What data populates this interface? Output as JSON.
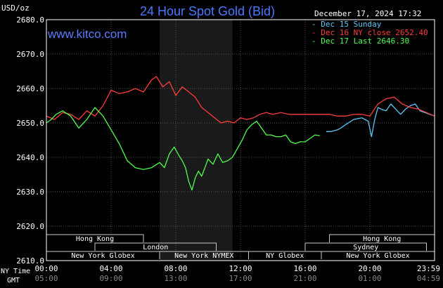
{
  "header": {
    "title": "24 Hour Spot Gold (Bid)",
    "unit": "USD/oz",
    "website": "www.kitco.com",
    "datetime": "December 17, 2024 17:32"
  },
  "legend": [
    {
      "dash": "-",
      "label": "Dec 15 Sunday",
      "color": "#5bc8f5"
    },
    {
      "dash": "-",
      "label": "Dec 16 NY close 2652.40",
      "color": "#ff3b3b"
    },
    {
      "dash": "-",
      "label": "Dec 17 Last 2646.30",
      "color": "#4cff4c"
    }
  ],
  "sessions": {
    "row1": [
      {
        "label": "Hong Kong",
        "start": 0.0,
        "end": 6.0
      },
      {
        "label": "Hong Kong",
        "start": 17.5,
        "end": 24.0
      }
    ],
    "row2": [
      {
        "label": "London",
        "start": 3.0,
        "end": 10.5
      },
      {
        "label": "Sydney",
        "start": 16.0,
        "end": 23.5
      }
    ],
    "row3": [
      {
        "label": "New York Globex",
        "start": 0.0,
        "end": 7.0
      },
      {
        "label": "New York NYMEX",
        "start": 7.0,
        "end": 12.5
      },
      {
        "label": "NY Globex",
        "start": 12.5,
        "end": 17.0
      },
      {
        "label": "New York Globex",
        "start": 17.0,
        "end": 24.0
      }
    ]
  },
  "axis_labels": {
    "ny": "NY Time",
    "gmt": "GMT"
  },
  "chart_data": {
    "type": "line",
    "title": "24 Hour Spot Gold (Bid)",
    "ylabel": "USD/oz",
    "xlim": [
      0,
      24
    ],
    "ylim": [
      2610,
      2680
    ],
    "yticks": [
      2610,
      2620,
      2630,
      2640,
      2650,
      2660,
      2670,
      2680
    ],
    "yticklabels": [
      "2610.0",
      "2620.0",
      "2630.0",
      "2640.0",
      "2650.0",
      "2660.0",
      "2670.0",
      "2680.0"
    ],
    "xticks": [
      0,
      4,
      8,
      12,
      16,
      20,
      24
    ],
    "xticklabels_ny": [
      "00:00",
      "04:00",
      "08:00",
      "12:00",
      "16:00",
      "20:00",
      "23:59"
    ],
    "xticklabels_gmt": [
      "05:00",
      "09:00",
      "13:00",
      "17:00",
      "21:00",
      "01:00",
      "04:59"
    ],
    "shaded_region": [
      7.0,
      11.5
    ],
    "grid": true,
    "legend_position": "top-right",
    "series": [
      {
        "name": "Dec 15 Sunday",
        "color": "#5bc8f5",
        "x": [
          17.3,
          17.6,
          18.0,
          18.2,
          18.5,
          19.0,
          19.5,
          19.9,
          20.1,
          20.3,
          20.5,
          20.7,
          21.0,
          21.3,
          21.6,
          21.9,
          22.2,
          22.5,
          22.8,
          23.1,
          23.4,
          23.7,
          23.99
        ],
        "y": [
          2647.5,
          2647.5,
          2648.0,
          2648.5,
          2649.5,
          2651.0,
          2651.5,
          2650.5,
          2646.0,
          2651.0,
          2654.5,
          2654.0,
          2653.5,
          2655.5,
          2654.0,
          2652.5,
          2654.0,
          2655.0,
          2655.5,
          2653.5,
          2653.0,
          2652.5,
          2652.0
        ]
      },
      {
        "name": "Dec 16 NY close 2652.40",
        "color": "#ff3b3b",
        "x": [
          0.0,
          0.5,
          1.0,
          1.5,
          2.0,
          2.5,
          3.0,
          3.5,
          4.0,
          4.5,
          5.0,
          5.5,
          6.0,
          6.5,
          6.8,
          7.2,
          7.6,
          8.0,
          8.4,
          8.8,
          9.2,
          9.6,
          10.0,
          10.4,
          10.8,
          11.2,
          11.6,
          12.0,
          12.4,
          12.8,
          13.2,
          13.6,
          14.0,
          14.5,
          15.0,
          15.5,
          16.0,
          16.5,
          17.0,
          17.5,
          18.0,
          18.5,
          19.0,
          19.5,
          20.0,
          20.5,
          21.0,
          21.5,
          22.0,
          22.5,
          23.0,
          23.5,
          23.99
        ],
        "y": [
          2652.0,
          2651.0,
          2653.0,
          2652.5,
          2651.0,
          2653.5,
          2652.0,
          2655.0,
          2659.5,
          2658.5,
          2659.0,
          2660.0,
          2659.0,
          2662.5,
          2663.5,
          2660.5,
          2662.0,
          2658.0,
          2660.5,
          2659.0,
          2657.5,
          2654.5,
          2653.0,
          2651.5,
          2650.0,
          2650.5,
          2650.0,
          2651.5,
          2651.0,
          2651.5,
          2652.5,
          2653.0,
          2652.5,
          2653.0,
          2652.5,
          2652.5,
          2652.5,
          2652.5,
          2652.5,
          2652.5,
          2652.0,
          2652.0,
          2652.5,
          2652.5,
          2652.0,
          2655.5,
          2657.0,
          2657.5,
          2655.5,
          2654.5,
          2654.0,
          2653.0,
          2652.0
        ]
      },
      {
        "name": "Dec 17 Last 2646.30",
        "color": "#4cff4c",
        "x": [
          0.0,
          0.3,
          0.6,
          1.0,
          1.5,
          2.0,
          2.5,
          3.0,
          3.5,
          4.0,
          4.5,
          5.0,
          5.5,
          6.0,
          6.5,
          7.0,
          7.3,
          7.6,
          7.9,
          8.2,
          8.4,
          8.6,
          8.8,
          9.0,
          9.2,
          9.4,
          9.6,
          9.8,
          10.0,
          10.3,
          10.6,
          10.9,
          11.2,
          11.5,
          11.8,
          12.1,
          12.4,
          12.7,
          13.0,
          13.3,
          13.6,
          13.9,
          14.2,
          14.5,
          14.8,
          15.1,
          15.4,
          15.7,
          16.0,
          16.3,
          16.6,
          16.9
        ],
        "y": [
          2650.0,
          2651.0,
          2652.5,
          2653.5,
          2652.0,
          2648.5,
          2651.0,
          2654.5,
          2652.0,
          2648.0,
          2644.0,
          2639.0,
          2637.0,
          2636.5,
          2637.0,
          2638.5,
          2637.0,
          2641.0,
          2643.0,
          2640.5,
          2639.0,
          2637.0,
          2633.0,
          2630.5,
          2634.0,
          2636.0,
          2634.5,
          2637.0,
          2639.5,
          2638.0,
          2641.0,
          2638.5,
          2639.0,
          2640.0,
          2642.5,
          2645.0,
          2648.0,
          2649.5,
          2650.5,
          2648.5,
          2646.5,
          2646.5,
          2646.0,
          2646.0,
          2646.5,
          2644.5,
          2644.0,
          2644.5,
          2644.5,
          2645.5,
          2646.5,
          2646.3
        ]
      }
    ]
  }
}
